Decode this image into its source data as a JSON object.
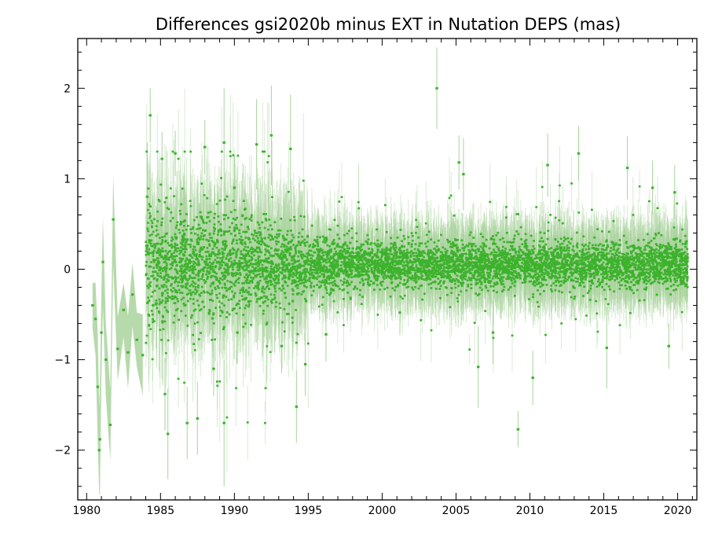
{
  "chart_data": {
    "type": "scatter",
    "title": "Differences gsi2020b minus EXT in Nutation DEPS (mas)",
    "xlabel": "",
    "ylabel": "",
    "xlim": [
      1979.4,
      2021.3
    ],
    "ylim": [
      -2.55,
      2.55
    ],
    "x_ticks": [
      1980,
      1985,
      1990,
      1995,
      2000,
      2005,
      2010,
      2015,
      2020
    ],
    "y_ticks": [
      -2,
      -1,
      0,
      1,
      2
    ],
    "x_tick_labels": [
      "1980",
      "1985",
      "1990",
      "1995",
      "2000",
      "2005",
      "2010",
      "2015",
      "2020"
    ],
    "y_tick_labels": [
      "−2",
      "−1",
      "0",
      "1",
      "2"
    ],
    "grid": false,
    "colors": {
      "points": "#3cb22c",
      "error_bars": "#a9d39c",
      "axes": "#000000"
    },
    "series": [
      {
        "points": [
          {
            "x": 1980.4,
            "y": -0.4,
            "err": 0.25
          },
          {
            "x": 1980.6,
            "y": -0.55,
            "err": 0.4
          },
          {
            "x": 1980.75,
            "y": -1.3,
            "err": 0.6
          },
          {
            "x": 1980.85,
            "y": -2.0,
            "err": 0.5
          },
          {
            "x": 1980.9,
            "y": -1.88,
            "err": 0.6
          },
          {
            "x": 1981.0,
            "y": -0.7,
            "err": 0.5
          },
          {
            "x": 1981.1,
            "y": 0.08,
            "err": 0.5
          },
          {
            "x": 1981.3,
            "y": -1.0,
            "err": 0.4
          },
          {
            "x": 1981.6,
            "y": -1.72,
            "err": 0.4
          },
          {
            "x": 1981.8,
            "y": 0.55,
            "err": 0.5
          },
          {
            "x": 1982.1,
            "y": -0.88,
            "err": 0.35
          },
          {
            "x": 1982.5,
            "y": -0.45,
            "err": 0.3
          },
          {
            "x": 1982.8,
            "y": -0.92,
            "err": 0.4
          },
          {
            "x": 1983.1,
            "y": -0.28,
            "err": 0.35
          },
          {
            "x": 1983.4,
            "y": -0.78,
            "err": 0.3
          },
          {
            "x": 1983.8,
            "y": -0.95,
            "err": 0.45
          },
          {
            "x": 1984.1,
            "y": 0.8,
            "err": 0.6
          },
          {
            "x": 1984.3,
            "y": 1.7,
            "err": 0.3
          },
          {
            "x": 1984.5,
            "y": -0.4,
            "err": 0.5
          },
          {
            "x": 1985.1,
            "y": 1.22,
            "err": 0.3
          },
          {
            "x": 1985.3,
            "y": -1.38,
            "err": 0.4
          },
          {
            "x": 1985.5,
            "y": -1.82,
            "err": 0.5
          },
          {
            "x": 1986.0,
            "y": 1.28,
            "err": 0.25
          },
          {
            "x": 1986.8,
            "y": -1.7,
            "err": 0.4
          },
          {
            "x": 1987.5,
            "y": -1.65,
            "err": 0.4
          },
          {
            "x": 1988.0,
            "y": 1.35,
            "err": 0.3
          },
          {
            "x": 1988.6,
            "y": -1.1,
            "err": 0.3
          },
          {
            "x": 1989.3,
            "y": 1.4,
            "err": 0.6
          },
          {
            "x": 1989.3,
            "y": -1.7,
            "err": 0.7
          },
          {
            "x": 1990.0,
            "y": 0.9,
            "err": 0.35
          },
          {
            "x": 1990.2,
            "y": -0.7,
            "err": 0.35
          },
          {
            "x": 1991.5,
            "y": 1.38,
            "err": 0.5
          },
          {
            "x": 1992.5,
            "y": 1.48,
            "err": 0.55
          },
          {
            "x": 1993.2,
            "y": -0.85,
            "err": 0.3
          },
          {
            "x": 1993.8,
            "y": 1.33,
            "err": 0.6
          },
          {
            "x": 1994.2,
            "y": -1.52,
            "err": 0.4
          },
          {
            "x": 1994.8,
            "y": -1.05,
            "err": 0.35
          },
          {
            "x": 1996.2,
            "y": -0.72,
            "err": 0.3
          },
          {
            "x": 2001.2,
            "y": -0.48,
            "err": 0.25
          },
          {
            "x": 2003.7,
            "y": 2.0,
            "err": 0.45
          },
          {
            "x": 2005.2,
            "y": 1.18,
            "err": 0.3
          },
          {
            "x": 2005.5,
            "y": 1.05,
            "err": 0.4
          },
          {
            "x": 2006.5,
            "y": -1.08,
            "err": 0.45
          },
          {
            "x": 2007.5,
            "y": -0.7,
            "err": 0.35
          },
          {
            "x": 2009.2,
            "y": -1.77,
            "err": 0.2
          },
          {
            "x": 2010.2,
            "y": -1.2,
            "err": 0.3
          },
          {
            "x": 2011.2,
            "y": 1.15,
            "err": 0.35
          },
          {
            "x": 2013.3,
            "y": 1.28,
            "err": 0.3
          },
          {
            "x": 2015.2,
            "y": -0.87,
            "err": 0.45
          },
          {
            "x": 2016.6,
            "y": 1.12,
            "err": 0.35
          },
          {
            "x": 2018.3,
            "y": 0.9,
            "err": 0.3
          },
          {
            "x": 2019.4,
            "y": -0.85,
            "err": 0.25
          },
          {
            "x": 2019.8,
            "y": 0.85,
            "err": 0.3
          }
        ],
        "bulk_generated": {
          "x_range": [
            1984.0,
            2020.7
          ],
          "count": 6200,
          "center": 0.05,
          "spread_by_year": [
            [
              1984,
              0.3
            ],
            [
              1990,
              0.28
            ],
            [
              1995,
              0.16
            ],
            [
              2000,
              0.12
            ],
            [
              2005,
              0.13
            ],
            [
              2010,
              0.12
            ],
            [
              2015,
              0.12
            ],
            [
              2020,
              0.12
            ]
          ]
        }
      }
    ]
  }
}
